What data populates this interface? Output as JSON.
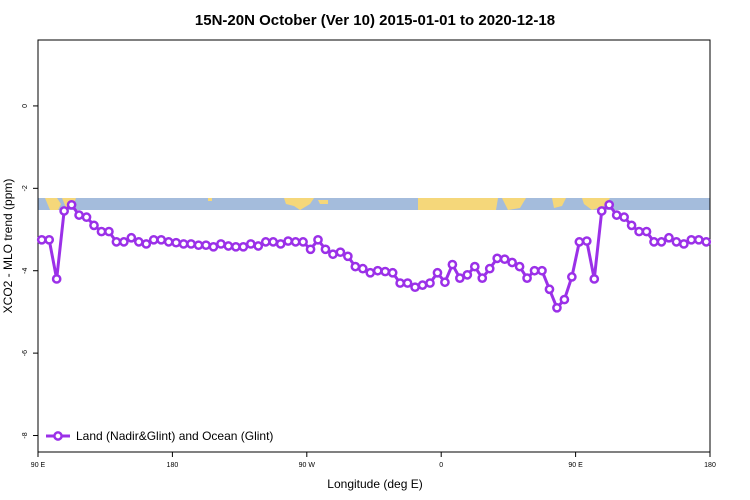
{
  "chart_data": {
    "type": "line",
    "title": "15N-20N October (Ver 10)   2015-01-01 to 2020-12-18",
    "x_label": "Longitude (deg E)",
    "y_label": "XCO2 - MLO trend (ppm)",
    "xlim": [
      90,
      540
    ],
    "xticks": [
      {
        "value": 90,
        "label": "90 E"
      },
      {
        "value": 180,
        "label": "180"
      },
      {
        "value": 270,
        "label": "90 W"
      },
      {
        "value": 360,
        "label": "0"
      },
      {
        "value": 450,
        "label": "90 E"
      },
      {
        "value": 540,
        "label": "180"
      }
    ],
    "ylim": [
      -8.4,
      1.6
    ],
    "yticks": [
      0,
      -2,
      -4,
      -6,
      -8
    ],
    "legend": "bottom left",
    "x": [
      92.5,
      97.5,
      102.5,
      107.5,
      112.5,
      117.5,
      122.5,
      127.5,
      132.5,
      137.5,
      142.5,
      147.5,
      152.5,
      157.5,
      162.5,
      167.5,
      172.5,
      177.5,
      182.5,
      187.5,
      192.5,
      197.5,
      202.5,
      207.5,
      212.5,
      217.5,
      222.5,
      227.5,
      232.5,
      237.5,
      242.5,
      247.5,
      252.5,
      257.5,
      262.5,
      267.5,
      272.5,
      277.5,
      282.5,
      287.5,
      292.5,
      297.5,
      302.5,
      307.5,
      312.5,
      317.5,
      322.5,
      327.5,
      332.5,
      337.5,
      342.5,
      347.5,
      352.5,
      357.5,
      362.5,
      367.5,
      372.5,
      377.5,
      382.5,
      387.5,
      392.5,
      397.5,
      402.5,
      407.5,
      412.5,
      417.5,
      422.5,
      427.5,
      432.5,
      437.5,
      442.5,
      447.5,
      452.5,
      457.5,
      462.5,
      467.5,
      472.5,
      477.5,
      482.5,
      487.5,
      492.5,
      497.5,
      502.5,
      507.5,
      512.5,
      517.5,
      522.5,
      527.5,
      532.5,
      537.5
    ],
    "series": [
      {
        "name": "Land (Nadir&Glint) and Ocean (Glint)",
        "color": "#9b30e8",
        "values": [
          -3.25,
          -3.25,
          -4.2,
          -2.55,
          -2.4,
          -2.65,
          -2.7,
          -2.9,
          -3.05,
          -3.05,
          -3.3,
          -3.3,
          -3.2,
          -3.3,
          -3.35,
          -3.25,
          -3.25,
          -3.3,
          -3.32,
          -3.35,
          -3.35,
          -3.38,
          -3.38,
          -3.42,
          -3.35,
          -3.4,
          -3.42,
          -3.42,
          -3.35,
          -3.4,
          -3.3,
          -3.3,
          -3.35,
          -3.28,
          -3.3,
          -3.3,
          -3.48,
          -3.25,
          -3.48,
          -3.6,
          -3.55,
          -3.65,
          -3.9,
          -3.95,
          -4.05,
          -4.0,
          -4.02,
          -4.05,
          -4.3,
          -4.3,
          -4.4,
          -4.35,
          -4.3,
          -4.05,
          -4.28,
          -3.85,
          -4.18,
          -4.1,
          -3.9,
          -4.18,
          -3.95,
          -3.7,
          -3.72,
          -3.8,
          -3.9,
          -4.18,
          -4.0,
          -4.0,
          -4.45,
          -4.9,
          -4.7,
          -4.15,
          -3.3,
          -3.28,
          -4.2,
          -2.55,
          -2.4,
          -2.65,
          -2.7,
          -2.9,
          -3.05,
          -3.05,
          -3.3,
          -3.3,
          -3.2,
          -3.3,
          -3.35,
          -3.25,
          -3.25,
          -3.3
        ]
      }
    ]
  }
}
